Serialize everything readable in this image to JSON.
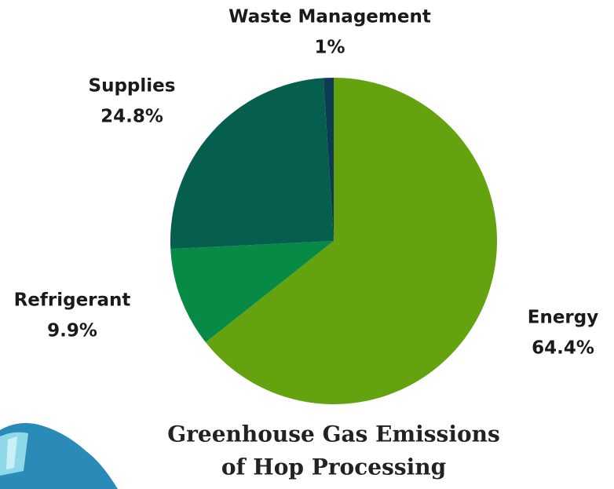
{
  "chart_data": {
    "type": "pie",
    "title": [
      "Greenhouse Gas Emissions",
      "of Hop Processing"
    ],
    "categories": [
      "Energy",
      "Refrigerant",
      "Supplies",
      "Waste Management"
    ],
    "values": [
      64.4,
      9.9,
      24.8,
      1
    ],
    "value_labels": [
      "64.4%",
      "9.9%",
      "24.8%",
      "1%"
    ],
    "colors": [
      "#64a30f",
      "#078a45",
      "#065e4f",
      "#0d3b52"
    ]
  }
}
